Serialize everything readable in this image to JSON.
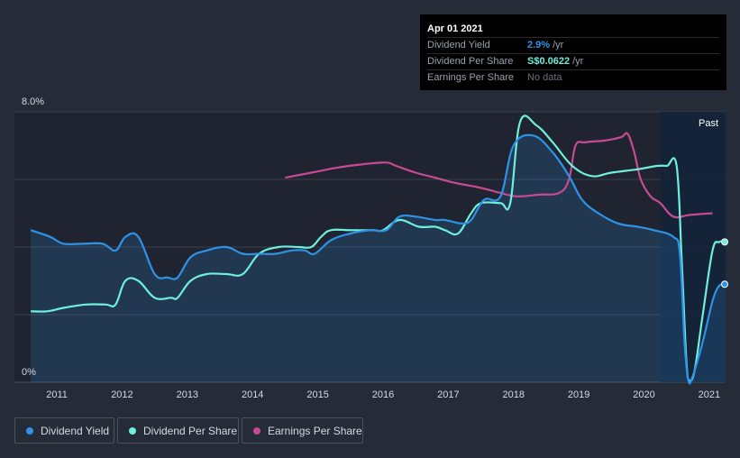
{
  "tooltip": {
    "date": "Apr 01 2021",
    "rows": [
      {
        "label": "Dividend Yield",
        "value": "2.9%",
        "unit": "/yr",
        "color": "#2e93e6"
      },
      {
        "label": "Dividend Per Share",
        "value": "S$0.0622",
        "unit": "/yr",
        "color": "#6ef0dc"
      },
      {
        "label": "Earnings Per Share",
        "value": "No data",
        "unit": "",
        "color": "#6b717d"
      }
    ]
  },
  "legend": [
    {
      "label": "Dividend Yield",
      "color": "#2e93e6"
    },
    {
      "label": "Dividend Per Share",
      "color": "#6ef0dc"
    },
    {
      "label": "Earnings Per Share",
      "color": "#c94a93"
    }
  ],
  "chart_data": {
    "type": "line",
    "ylabel_top": "8.0%",
    "ylabel_bottom": "0%",
    "past_label": "Past",
    "ylim": [
      0,
      8
    ],
    "xlim": [
      2010.35,
      2021.25
    ],
    "xticks": [
      2011,
      2012,
      2013,
      2014,
      2015,
      2016,
      2017,
      2018,
      2019,
      2020,
      2021
    ],
    "past_start": 2020.25,
    "series": [
      {
        "name": "Dividend Yield",
        "color": "#2e93e6",
        "fill": true,
        "points": [
          [
            2010.6,
            4.5
          ],
          [
            2010.9,
            4.3
          ],
          [
            2011.1,
            4.1
          ],
          [
            2011.4,
            4.1
          ],
          [
            2011.7,
            4.1
          ],
          [
            2011.9,
            3.9
          ],
          [
            2012.05,
            4.3
          ],
          [
            2012.25,
            4.3
          ],
          [
            2012.5,
            3.2
          ],
          [
            2012.7,
            3.1
          ],
          [
            2012.85,
            3.1
          ],
          [
            2013.05,
            3.7
          ],
          [
            2013.3,
            3.9
          ],
          [
            2013.6,
            4.0
          ],
          [
            2013.85,
            3.8
          ],
          [
            2014.1,
            3.8
          ],
          [
            2014.35,
            3.8
          ],
          [
            2014.6,
            3.9
          ],
          [
            2014.8,
            3.9
          ],
          [
            2014.95,
            3.8
          ],
          [
            2015.2,
            4.2
          ],
          [
            2015.5,
            4.4
          ],
          [
            2015.8,
            4.5
          ],
          [
            2016.05,
            4.5
          ],
          [
            2016.25,
            4.9
          ],
          [
            2016.5,
            4.9
          ],
          [
            2016.8,
            4.8
          ],
          [
            2016.95,
            4.8
          ],
          [
            2017.2,
            4.7
          ],
          [
            2017.35,
            4.8
          ],
          [
            2017.55,
            5.4
          ],
          [
            2017.8,
            5.5
          ],
          [
            2018.0,
            7.0
          ],
          [
            2018.3,
            7.3
          ],
          [
            2018.6,
            6.8
          ],
          [
            2018.85,
            6.1
          ],
          [
            2019.05,
            5.4
          ],
          [
            2019.3,
            5.0
          ],
          [
            2019.6,
            4.7
          ],
          [
            2019.9,
            4.6
          ],
          [
            2020.15,
            4.5
          ],
          [
            2020.45,
            4.3
          ],
          [
            2020.55,
            3.8
          ],
          [
            2020.62,
            1.2
          ],
          [
            2020.68,
            0.05
          ],
          [
            2020.75,
            0.2
          ],
          [
            2020.9,
            1.2
          ],
          [
            2021.05,
            2.4
          ],
          [
            2021.15,
            2.85
          ],
          [
            2021.25,
            2.9
          ]
        ]
      },
      {
        "name": "Dividend Per Share",
        "color": "#6ef0dc",
        "fill": false,
        "points": [
          [
            2010.6,
            2.1
          ],
          [
            2010.85,
            2.1
          ],
          [
            2011.1,
            2.2
          ],
          [
            2011.45,
            2.3
          ],
          [
            2011.75,
            2.3
          ],
          [
            2011.9,
            2.3
          ],
          [
            2012.05,
            3.0
          ],
          [
            2012.25,
            3.0
          ],
          [
            2012.5,
            2.5
          ],
          [
            2012.75,
            2.5
          ],
          [
            2012.85,
            2.5
          ],
          [
            2013.05,
            3.0
          ],
          [
            2013.3,
            3.2
          ],
          [
            2013.6,
            3.2
          ],
          [
            2013.85,
            3.2
          ],
          [
            2014.1,
            3.8
          ],
          [
            2014.4,
            4.0
          ],
          [
            2014.7,
            4.0
          ],
          [
            2014.9,
            4.0
          ],
          [
            2015.05,
            4.3
          ],
          [
            2015.2,
            4.5
          ],
          [
            2015.5,
            4.5
          ],
          [
            2015.85,
            4.5
          ],
          [
            2016.0,
            4.5
          ],
          [
            2016.25,
            4.8
          ],
          [
            2016.55,
            4.6
          ],
          [
            2016.8,
            4.6
          ],
          [
            2016.95,
            4.5
          ],
          [
            2017.15,
            4.4
          ],
          [
            2017.35,
            5.0
          ],
          [
            2017.5,
            5.3
          ],
          [
            2017.8,
            5.3
          ],
          [
            2017.95,
            5.3
          ],
          [
            2018.1,
            7.7
          ],
          [
            2018.35,
            7.6
          ],
          [
            2018.6,
            7.1
          ],
          [
            2018.9,
            6.4
          ],
          [
            2019.2,
            6.1
          ],
          [
            2019.5,
            6.2
          ],
          [
            2019.9,
            6.3
          ],
          [
            2020.2,
            6.4
          ],
          [
            2020.35,
            6.4
          ],
          [
            2020.5,
            6.4
          ],
          [
            2020.58,
            3.5
          ],
          [
            2020.65,
            0.6
          ],
          [
            2020.7,
            0.05
          ],
          [
            2020.78,
            0.4
          ],
          [
            2020.9,
            2.0
          ],
          [
            2021.05,
            3.9
          ],
          [
            2021.15,
            4.15
          ],
          [
            2021.25,
            4.15
          ]
        ]
      },
      {
        "name": "Earnings Per Share",
        "color": "#c94a93",
        "fill": false,
        "points": [
          [
            2014.5,
            6.05
          ],
          [
            2014.9,
            6.2
          ],
          [
            2015.3,
            6.35
          ],
          [
            2015.7,
            6.45
          ],
          [
            2016.05,
            6.5
          ],
          [
            2016.2,
            6.4
          ],
          [
            2016.5,
            6.2
          ],
          [
            2016.8,
            6.05
          ],
          [
            2017.1,
            5.9
          ],
          [
            2017.5,
            5.75
          ],
          [
            2017.8,
            5.6
          ],
          [
            2018.05,
            5.5
          ],
          [
            2018.4,
            5.55
          ],
          [
            2018.7,
            5.6
          ],
          [
            2018.85,
            6.0
          ],
          [
            2018.95,
            7.0
          ],
          [
            2019.1,
            7.1
          ],
          [
            2019.4,
            7.15
          ],
          [
            2019.65,
            7.25
          ],
          [
            2019.75,
            7.35
          ],
          [
            2019.85,
            6.8
          ],
          [
            2019.95,
            6.0
          ],
          [
            2020.1,
            5.5
          ],
          [
            2020.25,
            5.3
          ],
          [
            2020.45,
            4.9
          ],
          [
            2020.7,
            4.95
          ],
          [
            2021.05,
            5.0
          ]
        ]
      }
    ]
  }
}
